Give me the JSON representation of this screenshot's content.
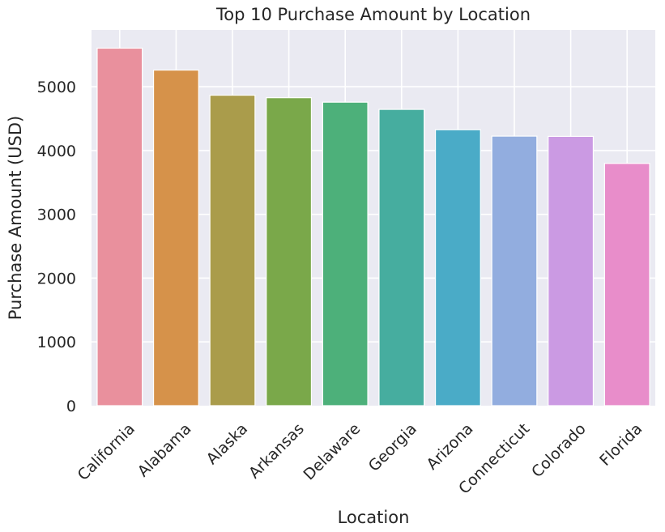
{
  "chart_data": {
    "type": "bar",
    "title": "Top 10 Purchase Amount by Location",
    "xlabel": "Location",
    "ylabel": "Purchase Amount (USD)",
    "categories": [
      "California",
      "Alabama",
      "Alaska",
      "Arkansas",
      "Delaware",
      "Georgia",
      "Arizona",
      "Connecticut",
      "Colorado",
      "Florida"
    ],
    "values": [
      5605,
      5261,
      4867,
      4828,
      4758,
      4645,
      4326,
      4226,
      4222,
      3798
    ],
    "colors": [
      "#e9909d",
      "#d6924a",
      "#aa9c4b",
      "#7aa84a",
      "#4db07a",
      "#46ad9f",
      "#4aabc7",
      "#92addf",
      "#cb9ae3",
      "#e88dca"
    ],
    "ylim": [
      0,
      5890
    ],
    "yticks": [
      0,
      1000,
      2000,
      3000,
      4000,
      5000
    ],
    "grid": true,
    "background": "#eaeaf2"
  }
}
